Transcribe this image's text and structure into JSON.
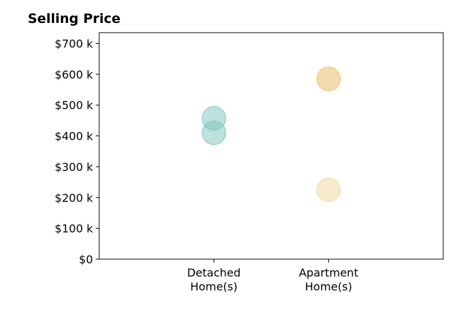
{
  "chart_data": {
    "type": "scatter",
    "title": "Selling Price",
    "xlabel": "",
    "ylabel": "",
    "categories": [
      [
        "Detached",
        "Home(s)"
      ],
      [
        "Apartment",
        "Home(s)"
      ]
    ],
    "y_ticks": [
      "$0",
      "$100 k",
      "$200 k",
      "$300 k",
      "$400 k",
      "$500 k",
      "$600 k",
      "$700 k"
    ],
    "y_tick_values": [
      0,
      100000,
      200000,
      300000,
      400000,
      500000,
      600000,
      700000
    ],
    "ylim": [
      0,
      735000
    ],
    "xlim": [
      -1,
      2
    ],
    "grid": false,
    "points": [
      {
        "category_index": 0,
        "y": 457000,
        "color": "#7cc4bc",
        "opacity": 0.5
      },
      {
        "category_index": 0,
        "y": 410000,
        "color": "#7cc4bc",
        "opacity": 0.5
      },
      {
        "category_index": 1,
        "y": 585000,
        "color": "#e8c06a",
        "opacity": 0.55
      },
      {
        "category_index": 1,
        "y": 225000,
        "color": "#f0d89a",
        "opacity": 0.5
      }
    ]
  }
}
